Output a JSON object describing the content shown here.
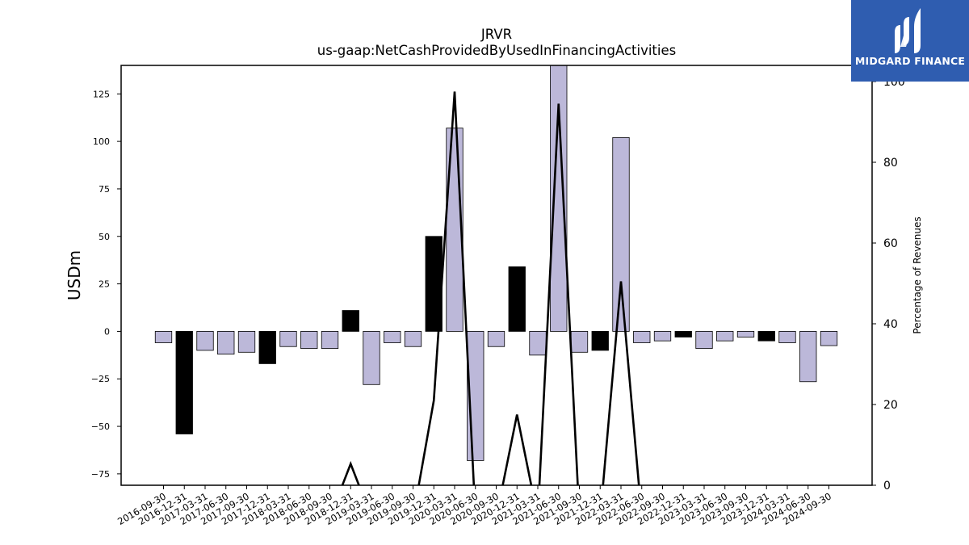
{
  "logo": {
    "text": "MIDGARD FINANCE",
    "color": "#2f5db0"
  },
  "chart_data": {
    "type": "bar",
    "title": "JRVR",
    "subtitle": "us-gaap:NetCashProvidedByUsedInFinancingActivities",
    "ylabel": "USDm",
    "y2label": "Percentage of Revenues",
    "ylim": [
      -81,
      140
    ],
    "y2lim": [
      0,
      104
    ],
    "yticks": [
      -75,
      -50,
      -25,
      0,
      25,
      50,
      75,
      100,
      125
    ],
    "y2ticks": [
      0,
      20,
      40,
      60,
      80,
      100
    ],
    "categories": [
      "2016-09-30",
      "2016-12-31",
      "2017-03-31",
      "2017-06-30",
      "2017-09-30",
      "2017-12-31",
      "2018-03-31",
      "2018-06-30",
      "2018-09-30",
      "2018-12-31",
      "2019-03-31",
      "2019-06-30",
      "2019-09-30",
      "2019-12-31",
      "2020-03-31",
      "2020-06-30",
      "2020-09-30",
      "2020-12-31",
      "2021-03-31",
      "2021-06-30",
      "2021-09-30",
      "2021-12-31",
      "2022-03-31",
      "2022-06-30",
      "2022-09-30",
      "2022-12-31",
      "2023-03-31",
      "2023-06-30",
      "2023-09-30",
      "2023-12-31",
      "2024-03-31",
      "2024-06-30",
      "2024-09-30"
    ],
    "series": [
      {
        "kind": "bar",
        "values": [
          -6,
          -54,
          -10,
          -12,
          -11,
          -17,
          -8,
          -9,
          -9,
          11,
          -28,
          -6,
          -8,
          50,
          107,
          -68,
          -8,
          34,
          -12.5,
          142,
          -11,
          -10,
          102,
          -6,
          -5,
          -3,
          -9,
          -5,
          -3,
          -5,
          -6,
          -26.5,
          -7.5
        ],
        "highlight": [
          false,
          true,
          false,
          false,
          false,
          true,
          false,
          false,
          false,
          true,
          false,
          false,
          false,
          true,
          false,
          false,
          false,
          true,
          false,
          false,
          false,
          true,
          false,
          false,
          false,
          true,
          false,
          false,
          false,
          true,
          false,
          false,
          false
        ],
        "color": "#bcb8d9",
        "highlight_color": "#000000"
      },
      {
        "kind": "line",
        "axis": "right",
        "values": [
          null,
          null,
          null,
          null,
          null,
          null,
          null,
          null,
          null,
          5.3,
          null,
          null,
          null,
          21,
          97.5,
          null,
          null,
          17.5,
          null,
          94.5,
          null,
          null,
          50.5,
          null,
          null,
          null,
          null,
          null,
          null,
          null,
          null,
          null,
          null
        ],
        "color": "#000000"
      }
    ],
    "grid": false,
    "legend": "none"
  }
}
